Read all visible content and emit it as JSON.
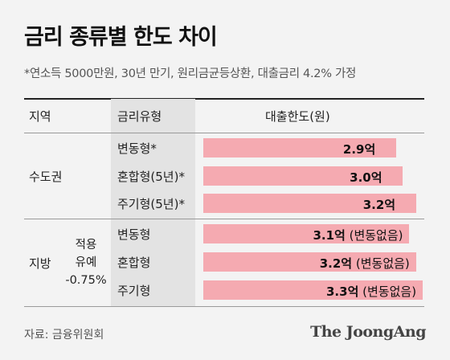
{
  "title": "금리 종류별 한도 차이",
  "subtitle": "*연소득 5000만원, 30년 만기, 원리금균등상환, 대출금리 4.2% 가정",
  "headers": {
    "region": "지역",
    "rate_type": "금리유형",
    "limit": "대출한도(원)"
  },
  "regions": {
    "capital": "수도권",
    "local": "지방"
  },
  "local_note": {
    "line1": "적용",
    "line2": "유예",
    "line3": "-0.75%"
  },
  "chart_data": {
    "type": "bar",
    "orientation": "horizontal",
    "unit": "억",
    "xlim": [
      0,
      3.3
    ],
    "rows": [
      {
        "region": "수도권",
        "category": "변동형*",
        "value": 2.9,
        "label": "2.9억",
        "note": ""
      },
      {
        "region": "수도권",
        "category": "혼합형(5년)*",
        "value": 3.0,
        "label": "3.0억",
        "note": ""
      },
      {
        "region": "수도권",
        "category": "주기형(5년)*",
        "value": 3.2,
        "label": "3.2억",
        "note": ""
      },
      {
        "region": "지방",
        "category": "변동형",
        "value": 3.1,
        "label": "3.1억",
        "note": "(변동없음)"
      },
      {
        "region": "지방",
        "category": "혼합형",
        "value": 3.2,
        "label": "3.2억",
        "note": "(변동없음)"
      },
      {
        "region": "지방",
        "category": "주기형",
        "value": 3.3,
        "label": "3.3억",
        "note": "(변동없음)"
      }
    ]
  },
  "colors": {
    "bar": "#f5aab1",
    "label_column": "#e3e3e3",
    "background": "#f3f3f3"
  },
  "source": "자료: 금융위원회",
  "logo": "The JoongAng"
}
